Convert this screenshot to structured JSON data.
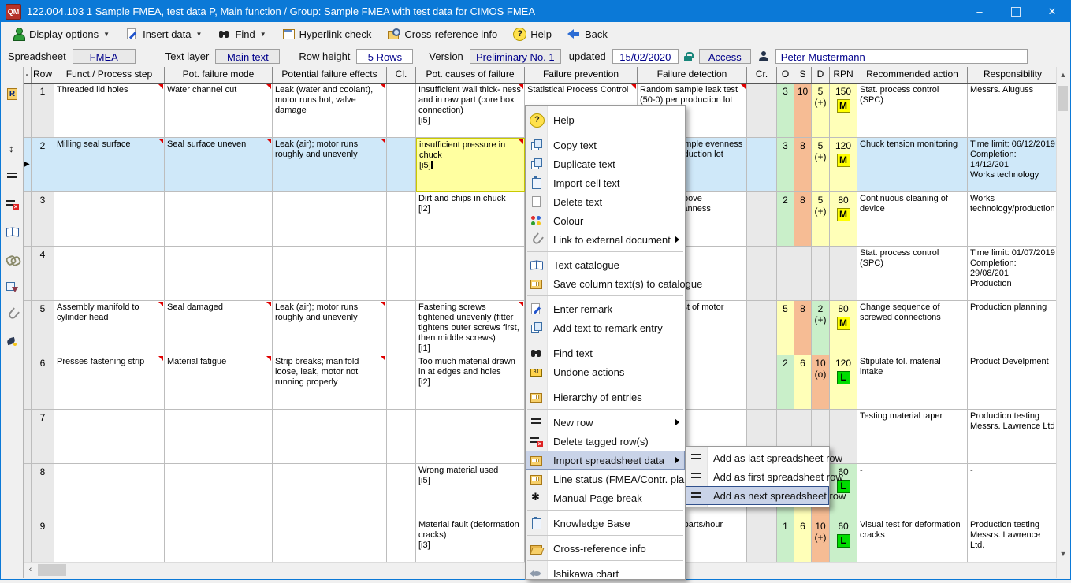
{
  "window": {
    "title": "122.004.103  1  Sample FMEA, test data  P,  Main function / Group: Sample FMEA with test data for CIMOS FMEA",
    "app_icon_text": "QM",
    "controls": {
      "minimize": "–",
      "maximize": "",
      "close": "✕"
    }
  },
  "toolbar": {
    "items": [
      {
        "label": "Display options",
        "icon": "gperson-icon",
        "dropdown": true
      },
      {
        "label": "Insert data",
        "icon": "pagepen-icon",
        "dropdown": true
      },
      {
        "label": "Find",
        "icon": "binoculars-icon",
        "dropdown": true
      },
      {
        "label": "Hyperlink check",
        "icon": "table-icon",
        "dropdown": false
      },
      {
        "label": "Cross-reference info",
        "icon": "xref-icon",
        "dropdown": false
      },
      {
        "label": "Help",
        "icon": "help-icon",
        "dropdown": false
      },
      {
        "label": "Back",
        "icon": "back-icon",
        "dropdown": false
      }
    ]
  },
  "infobar": {
    "spreadsheet_label": "Spreadsheet",
    "spreadsheet_value": "FMEA",
    "text_layer_label": "Text layer",
    "text_layer_value": "Main text",
    "row_height_label": "Row height",
    "row_height_value": "5 Rows",
    "version_label": "Version",
    "version_value": "Preliminary No. 1",
    "updated_label": "updated",
    "updated_value": "15/02/2020",
    "access_value": "Access",
    "user_value": "Peter Mustermann"
  },
  "sidebar_icons": [
    "rdoc-icon",
    "windows-icon",
    "row-height-icon",
    "rows-icon",
    "rows-delete-icon",
    "book-icon",
    "chain-icon",
    "copy-arrow-icon",
    "paperclip-icon",
    "quill-icon"
  ],
  "table": {
    "headers": [
      "-",
      "Row",
      "Funct./ Process step",
      "Pot. failure mode",
      "Potential failure effects",
      "Cl.",
      "Pot. causes of failure",
      "Failure prevention",
      "Failure detection",
      "Cr.",
      "O",
      "S",
      "D",
      "RPN",
      "Recommended action",
      "Responsibility"
    ],
    "rows": [
      {
        "no": "1",
        "sel": false,
        "arrow": false,
        "funct": "Threaded lid holes",
        "mode": "Water channel cut",
        "effects": "Leak (water and coolant), motor runs hot, valve damage",
        "cl": "",
        "causes": "Insufficient wall thick- ness and in raw part (core box connection)\n[i5]",
        "prevention": "Statistical Process Control",
        "detection": "Random sample leak test (50-0) per production lot",
        "cr": "",
        "o": {
          "v": "3",
          "t": "green"
        },
        "s": {
          "v": "10",
          "t": "salmon"
        },
        "d": {
          "v": "5",
          "sub": "(+)",
          "t": "yellow"
        },
        "rpn": {
          "v": "150",
          "badge": "M",
          "bt": "yellow",
          "t": "yellow"
        },
        "action": "Stat. process control (SPC)",
        "resp": "Messrs. Aluguss",
        "markers": [
          "funct",
          "mode",
          "effects",
          "causes",
          "prevention",
          "detection"
        ]
      },
      {
        "no": "2",
        "sel": true,
        "arrow": true,
        "funct": "Milling seal surface",
        "mode": "Seal surface uneven",
        "effects": "Leak (air); motor runs roughly and unevenly",
        "cl": "",
        "causes": "insufficient pressure in chuck\n[i5]",
        "causes_edit": true,
        "prevention": "",
        "detection": "Random sample evenness test per production lot",
        "cr": "",
        "o": {
          "v": "3",
          "t": "green"
        },
        "s": {
          "v": "8",
          "t": "salmon"
        },
        "d": {
          "v": "5",
          "sub": "(+)",
          "t": "yellow"
        },
        "rpn": {
          "v": "120",
          "badge": "M",
          "bt": "yellow",
          "t": "yellow"
        },
        "action": "Chuck tension monitoring",
        "resp": "Time limit: 06/12/2019\nCompletion: 14/12/201\nWorks technology",
        "markers": [
          "funct",
          "mode",
          "effects",
          "causes"
        ]
      },
      {
        "no": "3",
        "sel": false,
        "arrow": false,
        "funct": "",
        "mode": "",
        "effects": "",
        "cl": "",
        "causes": "Dirt and chips in chuck\n[i2]",
        "prevention": "",
        "detection": "related to  above\ncare for cleanness",
        "cr": "",
        "o": {
          "v": "2",
          "t": "green"
        },
        "s": {
          "v": "8",
          "t": "salmon"
        },
        "d": {
          "v": "5",
          "sub": "(+)",
          "t": "yellow"
        },
        "rpn": {
          "v": "80",
          "badge": "M",
          "bt": "yellow",
          "t": "yellow"
        },
        "action": "Continuous cleaning of device",
        "resp": "Works technology/production",
        "markers": []
      },
      {
        "no": "4",
        "sel": false,
        "arrow": false,
        "funct": "",
        "mode": "",
        "effects": "",
        "cl": "",
        "causes": "",
        "prevention": "",
        "detection": "",
        "cr": "",
        "o": {
          "v": "",
          "t": "gray"
        },
        "s": {
          "v": "",
          "t": "gray"
        },
        "d": {
          "v": "",
          "t": "gray"
        },
        "rpn": {
          "v": "",
          "badge": "",
          "bt": "",
          "t": "gray"
        },
        "action": "Stat. process control (SPC)",
        "resp": "Time limit: 01/07/2019\nCompletion: 29/08/201\nProduction",
        "markers": []
      },
      {
        "no": "5",
        "sel": false,
        "arrow": false,
        "funct": "Assembly manifold to cylinder head",
        "mode": "Seal damaged",
        "effects": "Leak (air); motor runs roughly and unevenly",
        "cl": "",
        "causes": "Fastening screws tightened unevenly (fitter tightens outer screws first, then middle screws)\n[i1]",
        "prevention": "",
        "detection": "Function test of motor",
        "cr": "",
        "o": {
          "v": "5",
          "t": "yellow"
        },
        "s": {
          "v": "8",
          "t": "salmon"
        },
        "d": {
          "v": "2",
          "sub": "(+)",
          "t": "green"
        },
        "rpn": {
          "v": "80",
          "badge": "M",
          "bt": "yellow",
          "t": "yellow"
        },
        "action": "Change sequence of screwed connections",
        "resp": "Production planning",
        "markers": [
          "funct",
          "mode",
          "effects",
          "causes"
        ]
      },
      {
        "no": "6",
        "sel": false,
        "arrow": false,
        "funct": "Presses fastening strip",
        "mode": "Material fatigue",
        "effects": "Strip breaks; manifold loose, leak, motor not running properly",
        "cl": "",
        "causes": "Too much material drawn in at edges and holes\n[i2]",
        "prevention": "",
        "detection": "",
        "cr": "",
        "o": {
          "v": "2",
          "t": "green"
        },
        "s": {
          "v": "6",
          "t": "yellow"
        },
        "d": {
          "v": "10",
          "sub": "(o)",
          "t": "salmon"
        },
        "rpn": {
          "v": "120",
          "badge": "L",
          "bt": "green",
          "t": "yellow"
        },
        "action": "Stipulate tol. material intake",
        "resp": "Product Develpment",
        "markers": [
          "funct",
          "mode",
          "effects"
        ]
      },
      {
        "no": "7",
        "sel": false,
        "arrow": false,
        "funct": "",
        "mode": "",
        "effects": "",
        "cl": "",
        "causes": "",
        "prevention": "",
        "detection": "",
        "cr": "",
        "o": {
          "v": "",
          "t": "gray"
        },
        "s": {
          "v": "",
          "t": "gray"
        },
        "d": {
          "v": "",
          "t": "gray"
        },
        "rpn": {
          "v": "",
          "badge": "",
          "bt": "",
          "t": "gray"
        },
        "action": "Testing material taper",
        "resp": "Production testing\nMessrs.  Lawrence Ltd",
        "markers": []
      },
      {
        "no": "8",
        "sel": false,
        "arrow": false,
        "funct": "",
        "mode": "",
        "effects": "",
        "cl": "",
        "causes": "Wrong material used\n[i5]",
        "prevention": "",
        "detection": "",
        "cr": "",
        "o": {
          "v": "",
          "t": "green"
        },
        "s": {
          "v": "",
          "t": "yellow"
        },
        "d": {
          "v": "",
          "t": "salmon"
        },
        "rpn": {
          "v": "60",
          "badge": "L",
          "bt": "green",
          "t": "green"
        },
        "action": "-",
        "resp": "-",
        "markers": []
      },
      {
        "no": "9",
        "sel": false,
        "arrow": false,
        "funct": "",
        "mode": "",
        "effects": "",
        "cl": "",
        "causes": "Material fault (deformation cracks)\n[i3]",
        "prevention": "",
        "detection": "Check 100 parts/hour",
        "cr": "",
        "o": {
          "v": "1",
          "t": "green"
        },
        "s": {
          "v": "6",
          "t": "yellow"
        },
        "d": {
          "v": "10",
          "sub": "(+)",
          "t": "salmon"
        },
        "rpn": {
          "v": "60",
          "badge": "L",
          "bt": "green",
          "t": "green"
        },
        "action": "Visual test for deformation cracks",
        "resp": "Production testing\nMessrs. Lawrence Ltd.",
        "markers": []
      }
    ]
  },
  "context_menu": {
    "items": [
      {
        "label": "Help",
        "icon": "help-icon"
      },
      {
        "sep": true
      },
      {
        "label": "Copy text",
        "icon": "copy-icon"
      },
      {
        "label": "Duplicate text",
        "icon": "copy-icon"
      },
      {
        "label": "Import cell text",
        "icon": "clipboard-icon"
      },
      {
        "label": "Delete text",
        "icon": "page-icon"
      },
      {
        "label": "Colour",
        "icon": "colour-icon"
      },
      {
        "label": "Link to external document",
        "icon": "paperclip-icon",
        "arrow": true
      },
      {
        "sep": true
      },
      {
        "label": "Text catalogue",
        "icon": "book-icon"
      },
      {
        "label": "Save column text(s) to catalogue",
        "icon": "folder-grid-icon"
      },
      {
        "sep": true
      },
      {
        "label": "Enter remark",
        "icon": "pagepen-icon"
      },
      {
        "label": "Add text to remark entry",
        "icon": "copy-icon"
      },
      {
        "sep": true
      },
      {
        "label": "Find text",
        "icon": "binoculars-icon"
      },
      {
        "label": "Undone actions",
        "icon": "history-icon"
      },
      {
        "sep": true
      },
      {
        "label": "Hierarchy of entries",
        "icon": "folder-grid-icon"
      },
      {
        "sep": true
      },
      {
        "label": "New row",
        "icon": "rows-icon",
        "arrow": true
      },
      {
        "label": "Delete tagged row(s)",
        "icon": "rows-delete-icon"
      },
      {
        "label": "Import spreadsheet data",
        "icon": "folder-grid-icon",
        "arrow": true,
        "highlighted": true
      },
      {
        "label": "Line status (FMEA/Contr. plan)",
        "icon": "folder-grid-icon"
      },
      {
        "label": "Manual Page break",
        "icon": "asterisk-icon"
      },
      {
        "sep": true
      },
      {
        "label": "Knowledge Base",
        "icon": "clipboard-icon"
      },
      {
        "sep": true
      },
      {
        "label": "Cross-reference info",
        "icon": "folder-open-icon"
      },
      {
        "sep": true
      },
      {
        "label": "Ishikawa chart",
        "icon": "fish-icon"
      }
    ]
  },
  "submenu": {
    "items": [
      {
        "label": "Add as last spreadsheet row",
        "icon": "rows-icon"
      },
      {
        "label": "Add as first spreadsheet row",
        "icon": "rows-icon"
      },
      {
        "label": "Add as next spreadsheet row",
        "icon": "rows2-icon",
        "highlighted": true
      }
    ]
  },
  "colors": {
    "title_blue": "#0b79d7",
    "selected_row": "#cfe8f9",
    "cell_green": "#c9efc9",
    "cell_yellow": "#ffffb8",
    "cell_salmon": "#f6bc94",
    "edit_cell_yellow": "#ffffa0",
    "badge_m": "#ffff00",
    "badge_l": "#00dd00",
    "marker_red": "#e00000",
    "value_text_navy": "#00008b"
  }
}
